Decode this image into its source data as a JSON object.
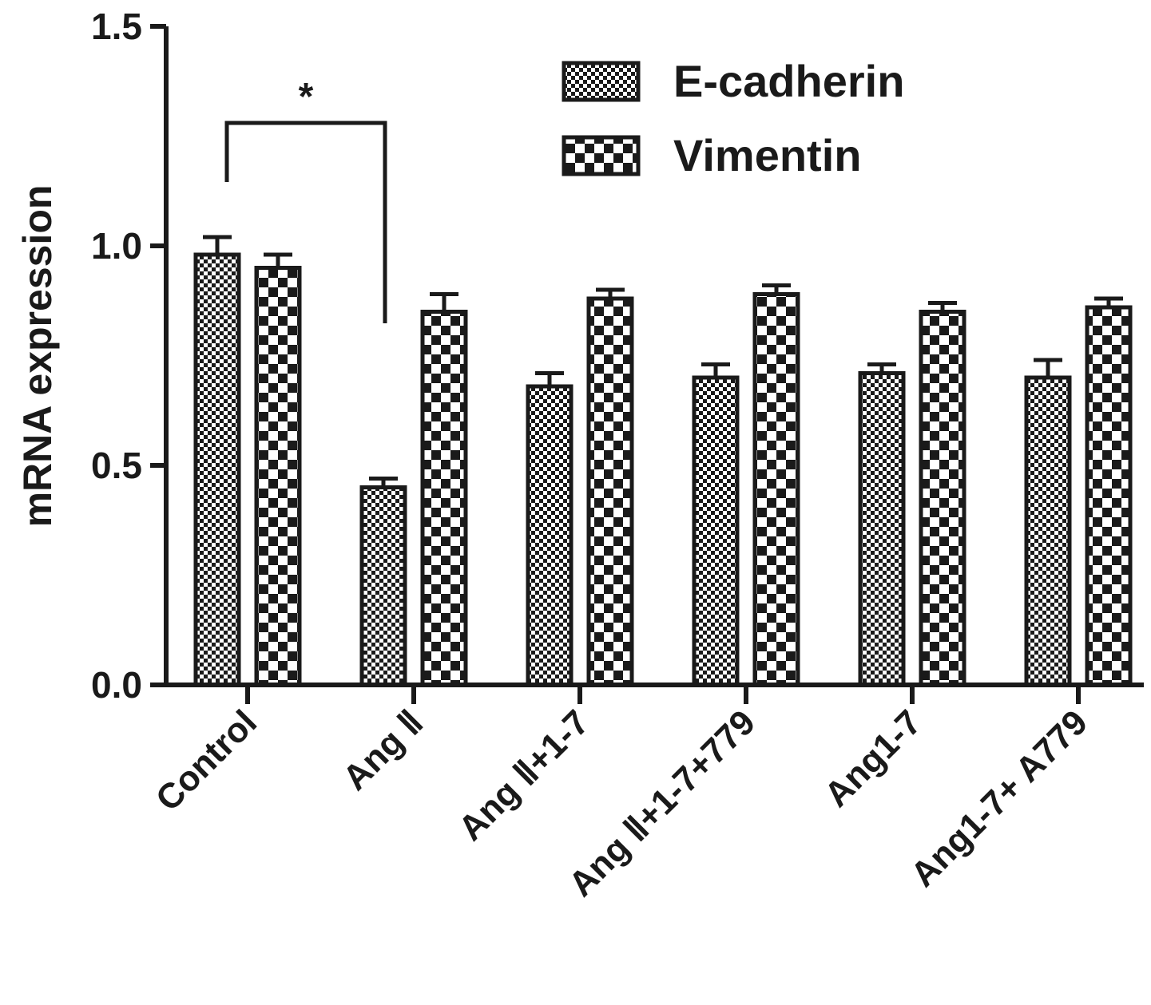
{
  "chart_data": {
    "type": "bar",
    "title": "",
    "xlabel": "",
    "ylabel": "mRNA expression",
    "ylim": [
      0,
      1.5
    ],
    "yticks": [
      "0.0",
      "0.5",
      "1.0",
      "1.5"
    ],
    "yticks_values": [
      0,
      0.5,
      1.0,
      1.5
    ],
    "categories": [
      "Control",
      "Ang Ⅱ",
      "Ang Ⅱ+1-7",
      "Ang Ⅱ+1-7+779",
      "Ang1-7",
      "Ang1-7+ A779"
    ],
    "series": [
      {
        "name": "E-cadherin",
        "pattern": "fine-checker",
        "values": [
          0.98,
          0.45,
          0.68,
          0.7,
          0.71,
          0.7
        ],
        "errors": [
          0.04,
          0.02,
          0.03,
          0.03,
          0.02,
          0.04
        ]
      },
      {
        "name": "Vimentin",
        "pattern": "coarse-checker",
        "values": [
          0.95,
          0.85,
          0.88,
          0.89,
          0.85,
          0.86
        ],
        "errors": [
          0.03,
          0.04,
          0.02,
          0.02,
          0.02,
          0.02
        ]
      }
    ],
    "legend_position": "top-right",
    "grid": false,
    "significance": {
      "label": "*",
      "from_category": "Control",
      "to_category": "Ang Ⅱ"
    },
    "colors": {
      "ink": "#1a1a1a",
      "background": "#ffffff"
    }
  }
}
